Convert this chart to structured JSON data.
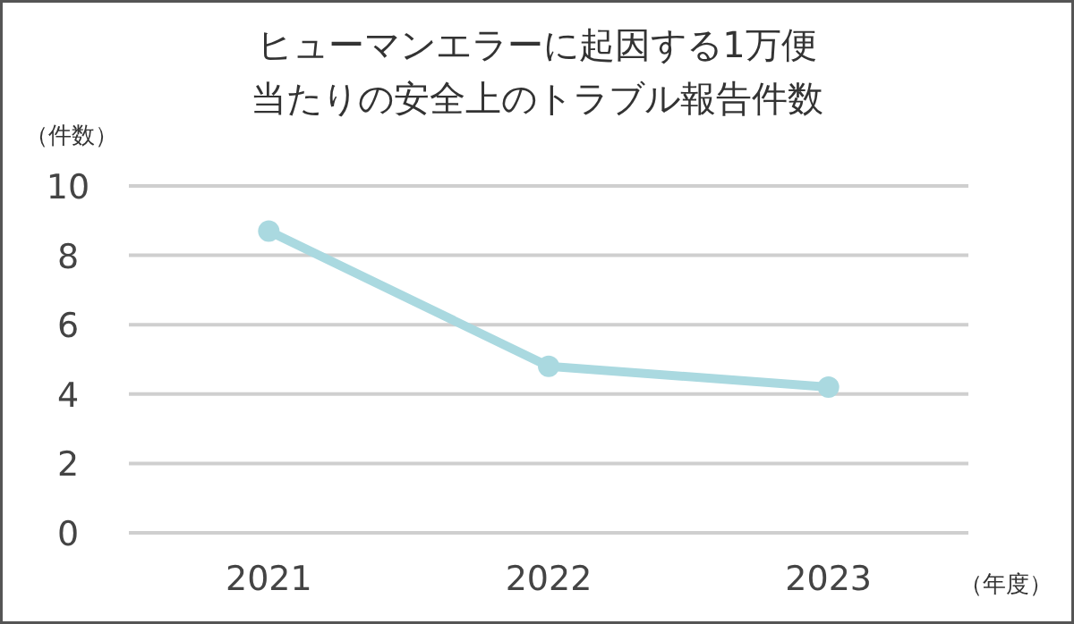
{
  "chart_data": {
    "type": "line",
    "title": "ヒューマンエラーに起因する1万便当たりの安全上のトラブル報告件数",
    "ylabel": "（件数）",
    "xlabel": "（年度）",
    "categories": [
      "2021",
      "2022",
      "2023"
    ],
    "series": [
      {
        "color": "#aad9e0",
        "values": [
          8.7,
          4.8,
          4.2
        ]
      }
    ],
    "ylim": [
      0,
      10
    ],
    "yticks": [
      0,
      2,
      4,
      6,
      8,
      10
    ],
    "grid": "y",
    "marker": "circle",
    "line_style": "solid"
  }
}
